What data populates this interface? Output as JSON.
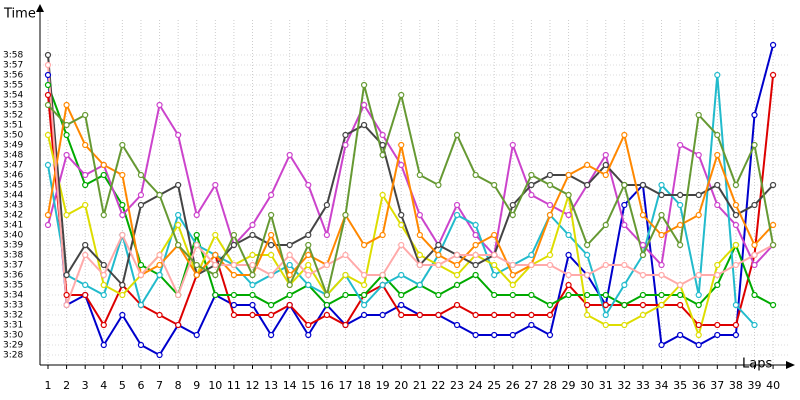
{
  "chart_data": {
    "type": "line",
    "y_label": "Time",
    "x_label": "Laps",
    "x": [
      1,
      2,
      3,
      4,
      5,
      6,
      7,
      8,
      9,
      10,
      11,
      12,
      13,
      14,
      15,
      16,
      17,
      18,
      19,
      20,
      21,
      22,
      23,
      24,
      25,
      26,
      27,
      28,
      29,
      30,
      31,
      32,
      33,
      34,
      35,
      36,
      37,
      38,
      39,
      40
    ],
    "xlim": [
      0.57,
      40.91
    ],
    "xticks": [
      1,
      2,
      3,
      4,
      5,
      6,
      7,
      8,
      9,
      10,
      11,
      12,
      13,
      14,
      15,
      16,
      17,
      18,
      19,
      20,
      21,
      22,
      23,
      24,
      25,
      26,
      27,
      28,
      29,
      30,
      31,
      32,
      33,
      34,
      35,
      36,
      37,
      38,
      39,
      40
    ],
    "ylim": [
      207,
      241.5
    ],
    "yticks": [
      {
        "value": 208,
        "label": "3:28"
      },
      {
        "value": 209,
        "label": "3:29"
      },
      {
        "value": 210,
        "label": "3:30"
      },
      {
        "value": 211,
        "label": "3:31"
      },
      {
        "value": 212,
        "label": "3:32"
      },
      {
        "value": 213,
        "label": "3:33"
      },
      {
        "value": 214,
        "label": "3:34"
      },
      {
        "value": 215,
        "label": "3:35"
      },
      {
        "value": 216,
        "label": "3:36"
      },
      {
        "value": 217,
        "label": "3:37"
      },
      {
        "value": 218,
        "label": "3:38"
      },
      {
        "value": 219,
        "label": "3:39"
      },
      {
        "value": 220,
        "label": "3:40"
      },
      {
        "value": 221,
        "label": "3:41"
      },
      {
        "value": 222,
        "label": "3:42"
      },
      {
        "value": 223,
        "label": "3:43"
      },
      {
        "value": 224,
        "label": "3:44"
      },
      {
        "value": 225,
        "label": "3:45"
      },
      {
        "value": 226,
        "label": "3:46"
      },
      {
        "value": 227,
        "label": "3:47"
      },
      {
        "value": 228,
        "label": "3:48"
      },
      {
        "value": 229,
        "label": "3:49"
      },
      {
        "value": 230,
        "label": "3:50"
      },
      {
        "value": 231,
        "label": "3:51"
      },
      {
        "value": 232,
        "label": "3:52"
      },
      {
        "value": 233,
        "label": "3:53"
      },
      {
        "value": 234,
        "label": "3:54"
      },
      {
        "value": 235,
        "label": "3:55"
      },
      {
        "value": 236,
        "label": "3:56"
      },
      {
        "value": 237,
        "label": "3:57"
      },
      {
        "value": 238,
        "label": "3:58"
      }
    ],
    "grid": true,
    "series": [
      {
        "color": "#0000cc",
        "values": [
          236,
          213,
          214,
          209,
          212,
          209,
          208,
          211,
          210,
          214,
          213,
          213,
          210,
          213,
          210,
          213,
          211,
          212,
          212,
          213,
          212,
          212,
          211,
          210,
          210,
          210,
          211,
          210,
          218,
          216,
          213,
          223,
          225,
          209,
          210,
          209,
          210,
          210,
          232,
          239
        ]
      },
      {
        "color": "#dd0000",
        "values": [
          234,
          214,
          214,
          211,
          215,
          213,
          212,
          211,
          216,
          218,
          212,
          212,
          212,
          213,
          211,
          212,
          211,
          214,
          215,
          212,
          212,
          212,
          213,
          212,
          212,
          212,
          212,
          212,
          215,
          213,
          213,
          213,
          213,
          213,
          213,
          211,
          211,
          211,
          218,
          236
        ]
      },
      {
        "color": "#00aa00",
        "values": [
          235,
          230,
          225,
          226,
          223,
          217,
          216,
          214,
          220,
          214,
          214,
          214,
          213,
          214,
          215,
          213,
          214,
          214,
          216,
          214,
          215,
          214,
          215,
          216,
          214,
          214,
          214,
          213,
          214,
          214,
          214,
          213,
          214,
          214,
          214,
          213,
          215,
          219,
          214,
          213
        ]
      },
      {
        "color": "#cc44cc",
        "values": [
          221,
          228,
          226,
          227,
          222,
          224,
          233,
          230,
          222,
          225,
          219,
          221,
          224,
          228,
          225,
          220,
          229,
          233,
          230,
          227,
          222,
          219,
          223,
          220,
          218,
          229,
          224,
          223,
          222,
          225,
          228,
          221,
          219,
          217,
          229,
          228,
          223,
          221,
          217,
          219
        ]
      },
      {
        "color": "#22bbcc",
        "values": [
          227,
          216,
          215,
          214,
          220,
          213,
          216,
          222,
          219,
          218,
          217,
          215,
          216,
          217,
          215,
          214,
          216,
          213,
          215,
          216,
          215,
          218,
          222,
          221,
          216,
          217,
          218,
          222,
          220,
          218,
          212,
          215,
          218,
          225,
          223,
          214,
          236,
          213,
          211,
          null
        ]
      },
      {
        "color": "#dddd00",
        "values": [
          230,
          222,
          223,
          215,
          214,
          216,
          218,
          221,
          216,
          220,
          217,
          218,
          218,
          215,
          217,
          214,
          216,
          215,
          224,
          221,
          218,
          217,
          216,
          218,
          217,
          215,
          217,
          218,
          224,
          212,
          211,
          211,
          212,
          213,
          215,
          210,
          217,
          219,
          null,
          null
        ]
      },
      {
        "color": "#444444",
        "values": [
          238,
          216,
          219,
          217,
          215,
          223,
          224,
          225,
          216,
          217,
          219,
          220,
          219,
          219,
          220,
          223,
          230,
          231,
          229,
          222,
          217,
          219,
          218,
          217,
          218,
          223,
          225,
          226,
          226,
          225,
          227,
          225,
          225,
          224,
          224,
          224,
          225,
          222,
          223,
          225
        ]
      },
      {
        "color": "#ff8800",
        "values": [
          222,
          233,
          229,
          227,
          226,
          216,
          217,
          219,
          216,
          218,
          216,
          216,
          220,
          216,
          218,
          217,
          222,
          219,
          220,
          229,
          220,
          218,
          217,
          219,
          220,
          216,
          217,
          222,
          226,
          227,
          226,
          230,
          222,
          220,
          221,
          222,
          228,
          223,
          219,
          221
        ]
      },
      {
        "color": "#ffaaaa",
        "values": [
          237,
          213,
          218,
          216,
          220,
          216,
          218,
          214,
          219,
          217,
          217,
          217,
          216,
          218,
          216,
          217,
          218,
          216,
          216,
          219,
          217,
          217,
          218,
          218,
          218,
          217,
          217,
          217,
          216,
          216,
          217,
          217,
          216,
          216,
          215,
          216,
          216,
          217,
          218,
          219
        ]
      },
      {
        "color": "#669933",
        "values": [
          233,
          231,
          232,
          222,
          229,
          226,
          224,
          219,
          217,
          216,
          220,
          216,
          222,
          215,
          219,
          214,
          222,
          235,
          228,
          234,
          226,
          225,
          230,
          226,
          225,
          222,
          226,
          225,
          224,
          219,
          221,
          225,
          218,
          222,
          219,
          232,
          230,
          225,
          229,
          219
        ]
      }
    ]
  }
}
